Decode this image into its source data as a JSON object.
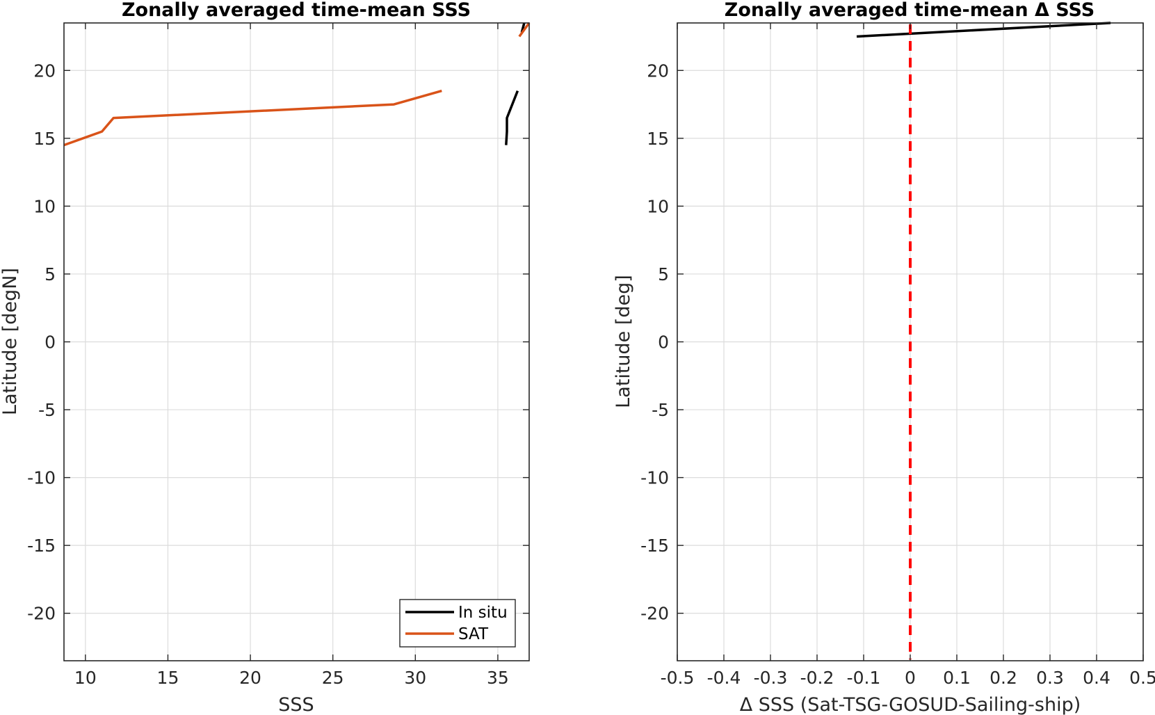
{
  "chart_data": [
    {
      "type": "line",
      "title": "Zonally averaged time-mean SSS",
      "xlabel": "SSS",
      "ylabel": "Latitude [degN]",
      "xlim": [
        8.7,
        36.9
      ],
      "ylim": [
        -23.5,
        23.5
      ],
      "xticks": [
        10,
        15,
        20,
        25,
        30,
        35
      ],
      "yticks": [
        -20,
        -15,
        -10,
        -5,
        0,
        5,
        10,
        15,
        20
      ],
      "grid": true,
      "legend": {
        "position": "bottom-right",
        "entries": [
          "In situ",
          "SAT"
        ]
      },
      "series": [
        {
          "name": "In situ",
          "color": "#000000",
          "points": [
            [
              35.5,
              14.5
            ],
            [
              35.55,
              15.5
            ],
            [
              35.55,
              16.5
            ],
            [
              36.2,
              18.5
            ]
          ]
        },
        {
          "name": "In situ",
          "color": "#000000",
          "points": [
            [
              36.45,
              22.8
            ],
            [
              36.6,
              23.5
            ]
          ]
        },
        {
          "name": "SAT",
          "color": "#D95319",
          "points": [
            [
              8.7,
              14.5
            ],
            [
              11.0,
              15.5
            ],
            [
              11.7,
              16.5
            ],
            [
              28.7,
              17.5
            ],
            [
              31.6,
              18.5
            ]
          ]
        },
        {
          "name": "SAT",
          "color": "#D95319",
          "points": [
            [
              36.3,
              22.5
            ],
            [
              36.9,
              23.5
            ]
          ]
        }
      ]
    },
    {
      "type": "line",
      "title": "Zonally averaged time-mean Δ SSS",
      "xlabel": "Δ SSS (Sat-TSG-GOSUD-Sailing-ship)",
      "ylabel": "Latitude [deg]",
      "xlim": [
        -0.5,
        0.5
      ],
      "ylim": [
        -23.5,
        23.5
      ],
      "xticks": [
        -0.5,
        -0.4,
        -0.3,
        -0.2,
        -0.1,
        0,
        0.1,
        0.2,
        0.3,
        0.4,
        0.5
      ],
      "yticks": [
        -20,
        -15,
        -10,
        -5,
        0,
        5,
        10,
        15,
        20
      ],
      "grid": true,
      "series": [
        {
          "name": "",
          "color": "#000000",
          "points": [
            [
              -0.115,
              22.5
            ],
            [
              0.43,
              23.5
            ]
          ]
        }
      ],
      "reference_line": {
        "x": 0,
        "color": "#FF0000",
        "style": "dashed"
      }
    }
  ]
}
